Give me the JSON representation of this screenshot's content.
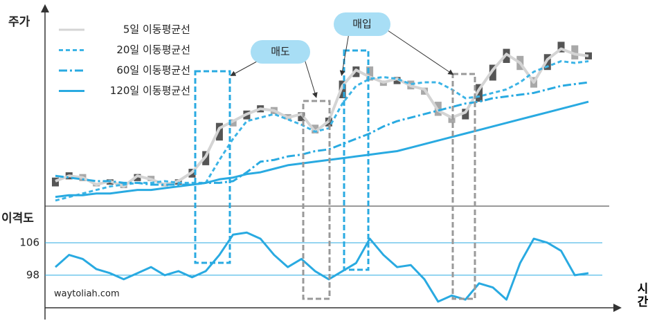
{
  "chart_data": [
    {
      "type": "line",
      "ylabel": "주가",
      "annotations": [
        "매도",
        "매입"
      ],
      "x": [
        0,
        1,
        2,
        3,
        4,
        5,
        6,
        7,
        8,
        9,
        10,
        11,
        12,
        13,
        14,
        15,
        16,
        17,
        18,
        19,
        20,
        21,
        22,
        23,
        24,
        25,
        26,
        27,
        28,
        29,
        30,
        31,
        32,
        33,
        34,
        35,
        36,
        37,
        38,
        39
      ],
      "xlim": [
        0,
        39
      ],
      "ylim": [
        0,
        100
      ],
      "candles": {
        "color_up": "#555555",
        "color_down": "#a8a8a8",
        "open": [
          10,
          14,
          17,
          12,
          11,
          12,
          13,
          16,
          12,
          11,
          15,
          22,
          36,
          48,
          48,
          52,
          55,
          51,
          47,
          45,
          44,
          60,
          72,
          78,
          70,
          68,
          70,
          66,
          58,
          50,
          48,
          58,
          70,
          80,
          84,
          72,
          76,
          86,
          90,
          82
        ],
        "close": [
          15,
          18,
          13,
          10,
          14,
          9,
          17,
          13,
          10,
          14,
          20,
          30,
          46,
          44,
          53,
          56,
          51,
          48,
          52,
          40,
          49,
          70,
          78,
          70,
          67,
          72,
          65,
          62,
          50,
          46,
          54,
          68,
          79,
          88,
          76,
          66,
          85,
          92,
          82,
          86
        ]
      },
      "series": [
        {
          "name": "5일 이동평균선",
          "color": "#d4d4d4",
          "style": "solid",
          "values": [
            13,
            16,
            15,
            11,
            13,
            10,
            16,
            14,
            11,
            13,
            18,
            27,
            43,
            47,
            51,
            54,
            53,
            49,
            51,
            41,
            47,
            67,
            76,
            72,
            69,
            71,
            67,
            65,
            53,
            49,
            52,
            65,
            76,
            85,
            80,
            69,
            82,
            88,
            85,
            84
          ]
        },
        {
          "name": "20일 이동평균선",
          "color": "#3cb4e6",
          "style": "dashed",
          "values": [
            2,
            4,
            6,
            8,
            10,
            11,
            12,
            12,
            13,
            12,
            12,
            12,
            25,
            37,
            47,
            49,
            51,
            48,
            45,
            41,
            43,
            57,
            67,
            71,
            72,
            71,
            68,
            69,
            69,
            65,
            60,
            61,
            63,
            65,
            69,
            75,
            78,
            81,
            80,
            81
          ]
        },
        {
          "name": "60일 이동평균선",
          "color": "#29aae1",
          "style": "dashdot",
          "values": [
            16,
            15,
            14,
            13,
            13,
            12,
            12,
            11,
            11,
            11,
            11,
            12,
            12,
            13,
            18,
            24,
            25,
            27,
            28,
            30,
            31,
            34,
            37,
            40,
            44,
            47,
            49,
            51,
            53,
            55,
            57,
            58,
            60,
            61,
            62,
            63,
            65,
            67,
            68,
            69
          ]
        },
        {
          "name": "120일 이동평균선",
          "color": "#29aae1",
          "style": "solid",
          "values": [
            4,
            5,
            5,
            6,
            6,
            7,
            8,
            8,
            9,
            10,
            11,
            12,
            14,
            15,
            17,
            18,
            20,
            22,
            23,
            24,
            25,
            26,
            27,
            28,
            29,
            30,
            32,
            34,
            36,
            38,
            40,
            42,
            44,
            46,
            48,
            50,
            52,
            54,
            56,
            58
          ]
        }
      ]
    },
    {
      "type": "line",
      "ylabel": "이격도",
      "xlabel": "시간",
      "source": "waytoliah.com",
      "x": [
        0,
        1,
        2,
        3,
        4,
        5,
        6,
        7,
        8,
        9,
        10,
        11,
        12,
        13,
        14,
        15,
        16,
        17,
        18,
        19,
        20,
        21,
        22,
        23,
        24,
        25,
        26,
        27,
        28,
        29,
        30,
        31,
        32,
        33,
        34,
        35,
        36,
        37,
        38,
        39
      ],
      "xlim": [
        0,
        39
      ],
      "ylim": [
        91,
        114
      ],
      "yticks": [
        106,
        98
      ],
      "grid": true,
      "series": [
        {
          "name": "이격도",
          "color": "#29aae1",
          "values": [
            100,
            103,
            102,
            99.5,
            98.5,
            97,
            98.5,
            100,
            98,
            99,
            97.5,
            99,
            103,
            108,
            108.5,
            107,
            103,
            100,
            102,
            99,
            97,
            99,
            101,
            107,
            103,
            100,
            100.5,
            97,
            91.5,
            93,
            92,
            96,
            95,
            92,
            101,
            107,
            106,
            104,
            98,
            98.5
          ]
        }
      ]
    }
  ]
}
